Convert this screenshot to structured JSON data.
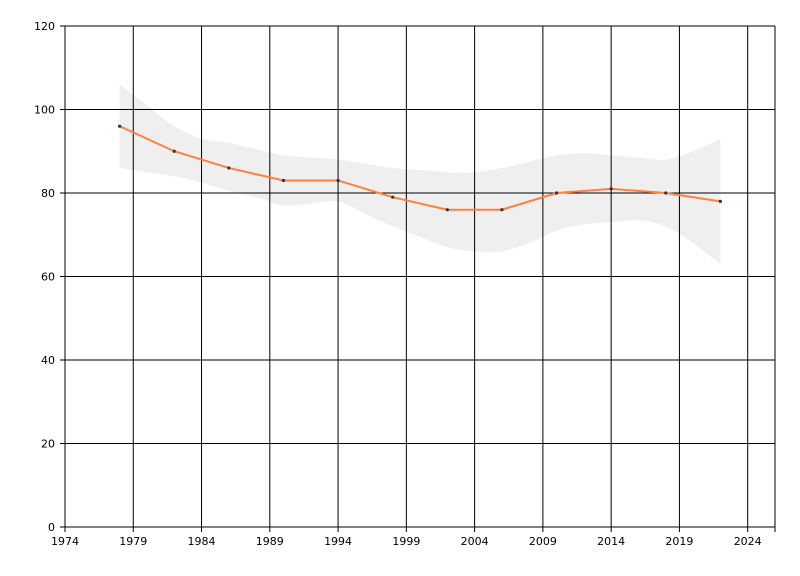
{
  "chart_data": {
    "type": "line",
    "title": "",
    "xlabel": "",
    "ylabel": "",
    "xlim": [
      1974,
      2026
    ],
    "ylim": [
      0,
      120
    ],
    "x_ticks": [
      1974,
      1979,
      1984,
      1989,
      1994,
      1999,
      2004,
      2009,
      2014,
      2019,
      2024
    ],
    "y_ticks": [
      0,
      20,
      40,
      60,
      80,
      100,
      120
    ],
    "grid": true,
    "legend": "none",
    "series": [
      {
        "x": [
          1978,
          1982,
          1986,
          1990,
          1994,
          1998,
          2002,
          2006,
          2010,
          2014,
          2018,
          2022
        ],
        "values": [
          96,
          90,
          86,
          83,
          83,
          79,
          76,
          76,
          80,
          81,
          80,
          78
        ],
        "color": "#ff7f3f",
        "marker_color": "#333333"
      }
    ],
    "confidence_band": {
      "color": "#efefef",
      "x": [
        1978,
        1980,
        1982,
        1984,
        1986,
        1988,
        1990,
        1992,
        1994,
        1996,
        1998,
        2000,
        2002,
        2004,
        2006,
        2008,
        2010,
        2012,
        2014,
        2016,
        2018,
        2020,
        2022
      ],
      "upper": [
        106,
        101,
        96,
        93,
        92,
        90.5,
        89,
        88.5,
        88,
        87,
        86,
        85.5,
        85,
        85,
        86,
        87.5,
        89,
        89.5,
        89,
        88.5,
        88,
        90,
        93
      ],
      "lower": [
        86,
        85,
        84,
        82.5,
        80.5,
        79,
        77,
        77.5,
        78,
        75,
        72,
        69.5,
        67,
        66,
        66,
        68,
        71,
        72.5,
        73,
        73.5,
        72,
        68,
        63
      ]
    }
  }
}
